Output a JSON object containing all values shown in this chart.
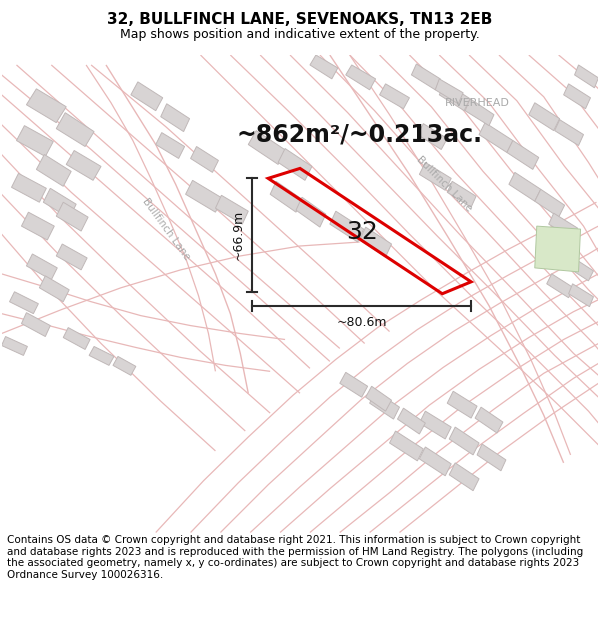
{
  "title": "32, BULLFINCH LANE, SEVENOAKS, TN13 2EB",
  "subtitle": "Map shows position and indicative extent of the property.",
  "footer": "Contains OS data © Crown copyright and database right 2021. This information is subject to Crown copyright and database rights 2023 and is reproduced with the permission of HM Land Registry. The polygons (including the associated geometry, namely x, y co-ordinates) are subject to Crown copyright and database rights 2023 Ordnance Survey 100026316.",
  "area_label": "~862m²/~0.213ac.",
  "number_label": "32",
  "dim_width": "~80.6m",
  "dim_height": "~66.9m",
  "riverhead_label": "RIVERHEAD",
  "bullfinch_lane_label_left": "Bullfinch Lane",
  "bullfinch_lane_label_right": "Bullfinch Lane",
  "map_bg": "#faf8f8",
  "road_color": "#e8b8b8",
  "road_lw": 1.0,
  "building_fill": "#d8d4d4",
  "building_edge": "#c0b8b8",
  "property_color": "#dd0000",
  "property_lw": 2.2,
  "dim_color": "#2a2a2a",
  "title_fontsize": 11,
  "subtitle_fontsize": 9,
  "footer_fontsize": 7.5,
  "area_fontsize": 17,
  "number_fontsize": 18,
  "dim_fontsize": 9,
  "label_color": "#aaaaaa",
  "riverhead_color": "#aaaaaa"
}
